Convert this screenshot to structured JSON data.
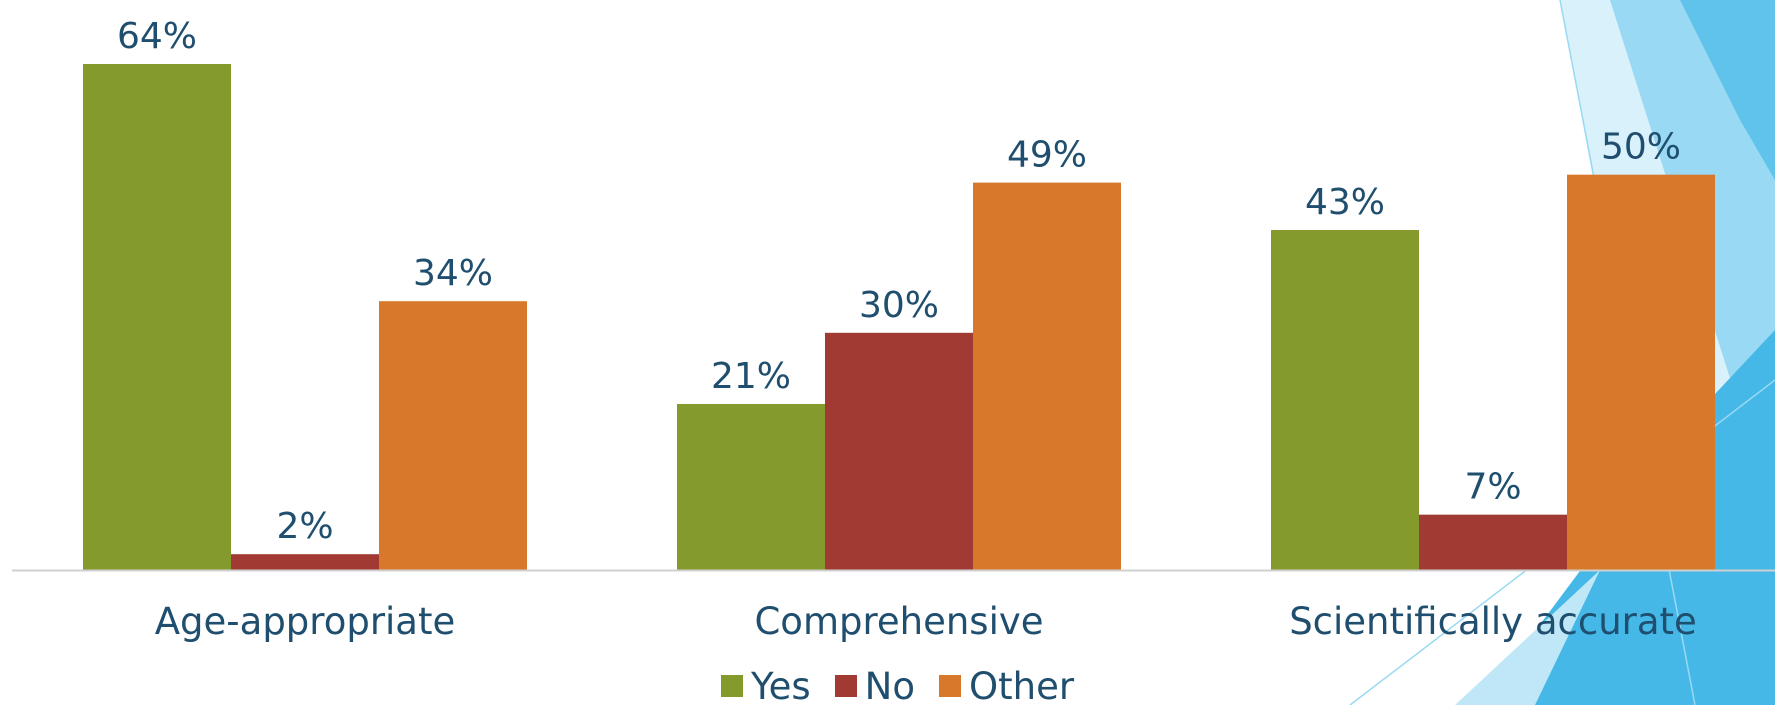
{
  "colors": {
    "yes": "#859a2c",
    "no": "#a03a33",
    "other": "#d8782a",
    "text": "#1f4e6e",
    "axis": "#d0d0d0"
  },
  "chart_data": {
    "type": "bar",
    "title": "",
    "xlabel": "",
    "ylabel": "",
    "categories": [
      "Age-appropriate",
      "Comprehensive",
      "Scientifically accurate"
    ],
    "series": [
      {
        "name": "Yes",
        "values": [
          64,
          21,
          43
        ],
        "labels": [
          "64%",
          "21%",
          "43%"
        ],
        "color": "#859a2c"
      },
      {
        "name": "No",
        "values": [
          2,
          30,
          7
        ],
        "labels": [
          "2%",
          "30%",
          "7%"
        ],
        "color": "#a03a33"
      },
      {
        "name": "Other",
        "values": [
          34,
          49,
          50
        ],
        "labels": [
          "34%",
          "49%",
          "50%"
        ],
        "color": "#d8782a"
      }
    ],
    "ylim": [
      0,
      64
    ],
    "grid": false,
    "legend_position": "bottom"
  },
  "legend": {
    "items": [
      {
        "label": "Yes",
        "color": "#859a2c"
      },
      {
        "label": "No",
        "color": "#a03a33"
      },
      {
        "label": "Other",
        "color": "#d8782a"
      }
    ]
  }
}
